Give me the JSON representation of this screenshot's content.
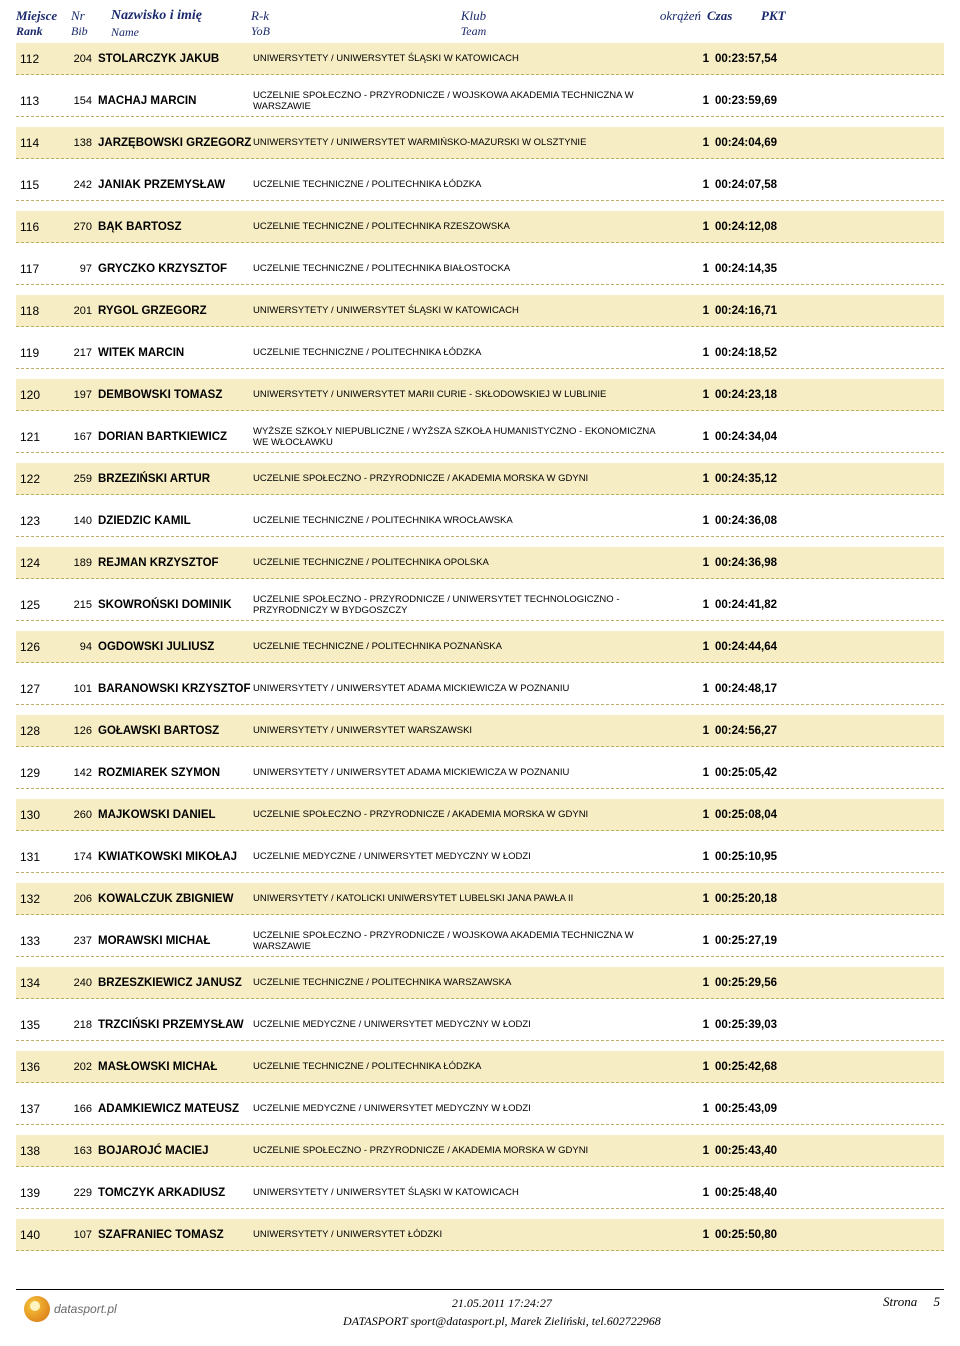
{
  "header": {
    "miejsce": "Miejsce",
    "rank": "Rank",
    "nr": "Nr",
    "bib": "Bib",
    "name_top": "Nazwisko i imię",
    "name_sub": "Name",
    "rk": "R-k",
    "yob": "YoB",
    "klub": "Klub",
    "team": "Team",
    "okr": "okrążeń",
    "czas": "Czas",
    "pkt": "PKT"
  },
  "colors": {
    "row_odd_bg": "#f6edc4",
    "row_even_bg": "#ffffff",
    "header_text": "#1a2a6c",
    "row_border": "#bfae6a"
  },
  "rows": [
    {
      "rank": "112",
      "bib": "204",
      "name": "STOLARCZYK JAKUB",
      "club": "UNIWERSYTETY / UNIWERSYTET ŚLĄSKI W KATOWICACH",
      "laps": "1",
      "time": "00:23:57,54",
      "pkt": ""
    },
    {
      "rank": "113",
      "bib": "154",
      "name": "MACHAJ MARCIN",
      "club": "UCZELNIE SPOŁECZNO - PRZYRODNICZE / WOJSKOWA AKADEMIA TECHNICZNA W WARSZAWIE",
      "laps": "1",
      "time": "00:23:59,69",
      "pkt": ""
    },
    {
      "rank": "114",
      "bib": "138",
      "name": "JARZĘBOWSKI GRZEGORZ",
      "club": "UNIWERSYTETY / UNIWERSYTET WARMIŃSKO-MAZURSKI W OLSZTYNIE",
      "laps": "1",
      "time": "00:24:04,69",
      "pkt": ""
    },
    {
      "rank": "115",
      "bib": "242",
      "name": "JANIAK PRZEMYSŁAW",
      "club": "UCZELNIE TECHNICZNE / POLITECHNIKA ŁÓDZKA",
      "laps": "1",
      "time": "00:24:07,58",
      "pkt": ""
    },
    {
      "rank": "116",
      "bib": "270",
      "name": "BĄK BARTOSZ",
      "club": "UCZELNIE TECHNICZNE / POLITECHNIKA RZESZOWSKA",
      "laps": "1",
      "time": "00:24:12,08",
      "pkt": ""
    },
    {
      "rank": "117",
      "bib": "97",
      "name": "GRYCZKO KRZYSZTOF",
      "club": "UCZELNIE TECHNICZNE / POLITECHNIKA BIAŁOSTOCKA",
      "laps": "1",
      "time": "00:24:14,35",
      "pkt": ""
    },
    {
      "rank": "118",
      "bib": "201",
      "name": "RYGOL GRZEGORZ",
      "club": "UNIWERSYTETY / UNIWERSYTET ŚLĄSKI W KATOWICACH",
      "laps": "1",
      "time": "00:24:16,71",
      "pkt": ""
    },
    {
      "rank": "119",
      "bib": "217",
      "name": "WITEK MARCIN",
      "club": "UCZELNIE TECHNICZNE / POLITECHNIKA ŁÓDZKA",
      "laps": "1",
      "time": "00:24:18,52",
      "pkt": ""
    },
    {
      "rank": "120",
      "bib": "197",
      "name": "DEMBOWSKI TOMASZ",
      "club": "UNIWERSYTETY / UNIWERSYTET MARII CURIE - SKŁODOWSKIEJ W LUBLINIE",
      "laps": "1",
      "time": "00:24:23,18",
      "pkt": ""
    },
    {
      "rank": "121",
      "bib": "167",
      "name": "DORIAN BARTKIEWICZ",
      "club": "WYŻSZE SZKOŁY NIEPUBLICZNE / WYŻSZA SZKOŁA HUMANISTYCZNO - EKONOMICZNA WE WŁOCŁAWKU",
      "laps": "1",
      "time": "00:24:34,04",
      "pkt": ""
    },
    {
      "rank": "122",
      "bib": "259",
      "name": "BRZEZIŃSKI ARTUR",
      "club": "UCZELNIE SPOŁECZNO - PRZYRODNICZE / AKADEMIA MORSKA W GDYNI",
      "laps": "1",
      "time": "00:24:35,12",
      "pkt": ""
    },
    {
      "rank": "123",
      "bib": "140",
      "name": "DZIEDZIC KAMIL",
      "club": "UCZELNIE TECHNICZNE / POLITECHNIKA WROCŁAWSKA",
      "laps": "1",
      "time": "00:24:36,08",
      "pkt": ""
    },
    {
      "rank": "124",
      "bib": "189",
      "name": "REJMAN KRZYSZTOF",
      "club": "UCZELNIE TECHNICZNE / POLITECHNIKA OPOLSKA",
      "laps": "1",
      "time": "00:24:36,98",
      "pkt": ""
    },
    {
      "rank": "125",
      "bib": "215",
      "name": "SKOWROŃSKI DOMINIK",
      "club": "UCZELNIE SPOŁECZNO - PRZYRODNICZE / UNIWERSYTET TECHNOLOGICZNO - PRZYRODNICZY W BYDGOSZCZY",
      "laps": "1",
      "time": "00:24:41,82",
      "pkt": ""
    },
    {
      "rank": "126",
      "bib": "94",
      "name": "OGDOWSKI JULIUSZ",
      "club": "UCZELNIE TECHNICZNE / POLITECHNIKA POZNAŃSKA",
      "laps": "1",
      "time": "00:24:44,64",
      "pkt": ""
    },
    {
      "rank": "127",
      "bib": "101",
      "name": "BARANOWSKI KRZYSZTOF",
      "club": "UNIWERSYTETY / UNIWERSYTET ADAMA MICKIEWICZA W POZNANIU",
      "laps": "1",
      "time": "00:24:48,17",
      "pkt": ""
    },
    {
      "rank": "128",
      "bib": "126",
      "name": "GOŁAWSKI BARTOSZ",
      "club": "UNIWERSYTETY / UNIWERSYTET WARSZAWSKI",
      "laps": "1",
      "time": "00:24:56,27",
      "pkt": ""
    },
    {
      "rank": "129",
      "bib": "142",
      "name": "ROZMIAREK SZYMON",
      "club": "UNIWERSYTETY / UNIWERSYTET ADAMA MICKIEWICZA W POZNANIU",
      "laps": "1",
      "time": "00:25:05,42",
      "pkt": ""
    },
    {
      "rank": "130",
      "bib": "260",
      "name": "MAJKOWSKI DANIEL",
      "club": "UCZELNIE SPOŁECZNO - PRZYRODNICZE / AKADEMIA MORSKA W GDYNI",
      "laps": "1",
      "time": "00:25:08,04",
      "pkt": ""
    },
    {
      "rank": "131",
      "bib": "174",
      "name": "KWIATKOWSKI MIKOŁAJ",
      "club": "UCZELNIE MEDYCZNE / UNIWERSYTET MEDYCZNY W ŁODZI",
      "laps": "1",
      "time": "00:25:10,95",
      "pkt": ""
    },
    {
      "rank": "132",
      "bib": "206",
      "name": "KOWALCZUK ZBIGNIEW",
      "club": "UNIWERSYTETY / KATOLICKI UNIWERSYTET LUBELSKI JANA PAWŁA II",
      "laps": "1",
      "time": "00:25:20,18",
      "pkt": ""
    },
    {
      "rank": "133",
      "bib": "237",
      "name": "MORAWSKI MICHAŁ",
      "club": "UCZELNIE SPOŁECZNO - PRZYRODNICZE / WOJSKOWA AKADEMIA TECHNICZNA W WARSZAWIE",
      "laps": "1",
      "time": "00:25:27,19",
      "pkt": ""
    },
    {
      "rank": "134",
      "bib": "240",
      "name": "BRZESZKIEWICZ JANUSZ",
      "club": "UCZELNIE TECHNICZNE / POLITECHNIKA WARSZAWSKA",
      "laps": "1",
      "time": "00:25:29,56",
      "pkt": ""
    },
    {
      "rank": "135",
      "bib": "218",
      "name": "TRZCIŃSKI PRZEMYSŁAW",
      "club": "UCZELNIE MEDYCZNE / UNIWERSYTET MEDYCZNY W ŁODZI",
      "laps": "1",
      "time": "00:25:39,03",
      "pkt": ""
    },
    {
      "rank": "136",
      "bib": "202",
      "name": "MASŁOWSKI MICHAŁ",
      "club": "UCZELNIE TECHNICZNE / POLITECHNIKA ŁÓDZKA",
      "laps": "1",
      "time": "00:25:42,68",
      "pkt": ""
    },
    {
      "rank": "137",
      "bib": "166",
      "name": "ADAMKIEWICZ MATEUSZ",
      "club": "UCZELNIE MEDYCZNE / UNIWERSYTET MEDYCZNY W ŁODZI",
      "laps": "1",
      "time": "00:25:43,09",
      "pkt": ""
    },
    {
      "rank": "138",
      "bib": "163",
      "name": "BOJAROJĆ MACIEJ",
      "club": "UCZELNIE SPOŁECZNO - PRZYRODNICZE / AKADEMIA MORSKA W GDYNI",
      "laps": "1",
      "time": "00:25:43,40",
      "pkt": ""
    },
    {
      "rank": "139",
      "bib": "229",
      "name": "TOMCZYK ARKADIUSZ",
      "club": "UNIWERSYTETY / UNIWERSYTET ŚLĄSKI W KATOWICACH",
      "laps": "1",
      "time": "00:25:48,40",
      "pkt": ""
    },
    {
      "rank": "140",
      "bib": "107",
      "name": "SZAFRANIEC TOMASZ",
      "club": "UNIWERSYTETY / UNIWERSYTET ŁÓDZKI",
      "laps": "1",
      "time": "00:25:50,80",
      "pkt": ""
    }
  ],
  "footer": {
    "logo_text": "datasport.pl",
    "timestamp": "21.05.2011 17:24:27",
    "contact": "DATASPORT sport@datasport.pl, Marek Zieliński, tel.602722968",
    "strona_label": "Strona",
    "page_num": "5"
  }
}
